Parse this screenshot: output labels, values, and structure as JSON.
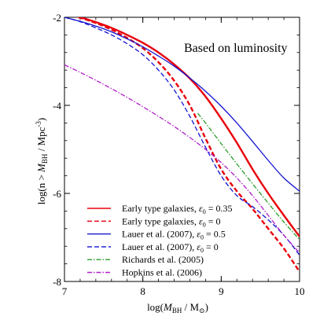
{
  "chart_data": {
    "type": "line",
    "annotation": "Based on luminosity",
    "xlabel": "log(M_BH / M_⊙)",
    "ylabel": "log(n > M_BH / Mpc^-3)",
    "xlim": [
      7,
      10
    ],
    "ylim": [
      -8,
      -2
    ],
    "x_ticks": [
      7,
      8,
      9,
      10
    ],
    "x_tick_labels": [
      "7",
      "8",
      "9",
      "10"
    ],
    "y_ticks": [
      -8,
      -6,
      -4,
      -2
    ],
    "y_tick_labels": [
      "-8",
      "-6",
      "-4",
      "-2"
    ],
    "grid": false,
    "legend_position": "bottom-center",
    "series": [
      {
        "name": "Early type galaxies, ε0 = 0.35",
        "label_main": "Early type galaxies, ",
        "label_eps": "ε",
        "label_sub": "0",
        "label_tail": " = 0.35",
        "color": "#e8000b",
        "style": "solid",
        "x": [
          7.0,
          7.2,
          7.4,
          7.6,
          7.8,
          8.0,
          8.2,
          8.4,
          8.6,
          8.8,
          9.0,
          9.2,
          9.4,
          9.6,
          9.8,
          10.0
        ],
        "y": [
          -1.92,
          -2.0,
          -2.11,
          -2.24,
          -2.4,
          -2.58,
          -2.8,
          -3.07,
          -3.39,
          -3.8,
          -4.3,
          -4.85,
          -5.45,
          -6.0,
          -6.5,
          -6.98
        ]
      },
      {
        "name": "Early type galaxies, ε0 = 0",
        "label_main": "Early type galaxies, ",
        "label_eps": "ε",
        "label_sub": "0",
        "label_tail": " = 0",
        "color": "#e8000b",
        "style": "dashed",
        "x": [
          7.0,
          7.2,
          7.4,
          7.6,
          7.8,
          8.0,
          8.2,
          8.4,
          8.6,
          8.8,
          9.0,
          9.2,
          9.4,
          9.6,
          9.8,
          10.0
        ],
        "y": [
          -1.93,
          -2.01,
          -2.13,
          -2.28,
          -2.47,
          -2.7,
          -3.02,
          -3.44,
          -4.0,
          -4.75,
          -5.45,
          -5.95,
          -6.35,
          -6.8,
          -7.25,
          -7.78
        ]
      },
      {
        "name": "Lauer et al. (2007), ε0 = 0.5",
        "label_main": "Lauer et al. (2007), ",
        "label_eps": "ε",
        "label_sub": "0",
        "label_tail": " = 0.5",
        "color": "#1414d2",
        "style": "solid",
        "x": [
          7.0,
          7.2,
          7.4,
          7.6,
          7.8,
          8.0,
          8.2,
          8.4,
          8.6,
          8.8,
          9.0,
          9.2,
          9.4,
          9.6,
          9.8,
          10.0
        ],
        "y": [
          -2.0,
          -2.09,
          -2.2,
          -2.33,
          -2.49,
          -2.67,
          -2.88,
          -3.11,
          -3.38,
          -3.68,
          -4.02,
          -4.4,
          -4.82,
          -5.25,
          -5.65,
          -5.95
        ]
      },
      {
        "name": "Lauer et al. (2007), ε0 = 0",
        "label_main": "Lauer et al. (2007), ",
        "label_eps": "ε",
        "label_sub": "0",
        "label_tail": " = 0",
        "color": "#1414d2",
        "style": "dashed",
        "x": [
          7.0,
          7.2,
          7.4,
          7.6,
          7.8,
          8.0,
          8.2,
          8.4,
          8.6,
          8.8,
          9.0,
          9.2,
          9.4,
          9.6,
          9.8,
          10.0
        ],
        "y": [
          -2.0,
          -2.1,
          -2.24,
          -2.4,
          -2.6,
          -2.85,
          -3.2,
          -3.65,
          -4.25,
          -4.95,
          -5.6,
          -6.05,
          -6.3,
          -6.6,
          -6.95,
          -7.4
        ]
      },
      {
        "name": "Richards et al. (2005)",
        "label_main": "Richards et al. (2005)",
        "label_eps": "",
        "label_sub": "",
        "label_tail": "",
        "color": "#2e9d2e",
        "style": "dashdot",
        "x": [
          8.7,
          8.8,
          9.0,
          9.2,
          9.4,
          9.6,
          9.8,
          10.0
        ],
        "y": [
          -4.18,
          -4.4,
          -4.87,
          -5.33,
          -5.78,
          -6.22,
          -6.65,
          -7.05
        ]
      },
      {
        "name": "Hopkins et al. (2006)",
        "label_main": "Hopkins et al. (2006)",
        "label_eps": "",
        "label_sub": "",
        "label_tail": "",
        "color": "#b020c8",
        "style": "dashdot",
        "x": [
          7.0,
          7.2,
          7.4,
          7.6,
          7.8,
          8.0,
          8.2,
          8.4,
          8.6,
          8.8,
          9.0,
          9.2,
          9.4,
          9.6,
          9.8,
          10.0
        ],
        "y": [
          -3.08,
          -3.25,
          -3.43,
          -3.62,
          -3.82,
          -4.03,
          -4.25,
          -4.48,
          -4.73,
          -5.0,
          -5.3,
          -5.65,
          -6.05,
          -6.5,
          -6.95,
          -7.35
        ]
      }
    ]
  }
}
